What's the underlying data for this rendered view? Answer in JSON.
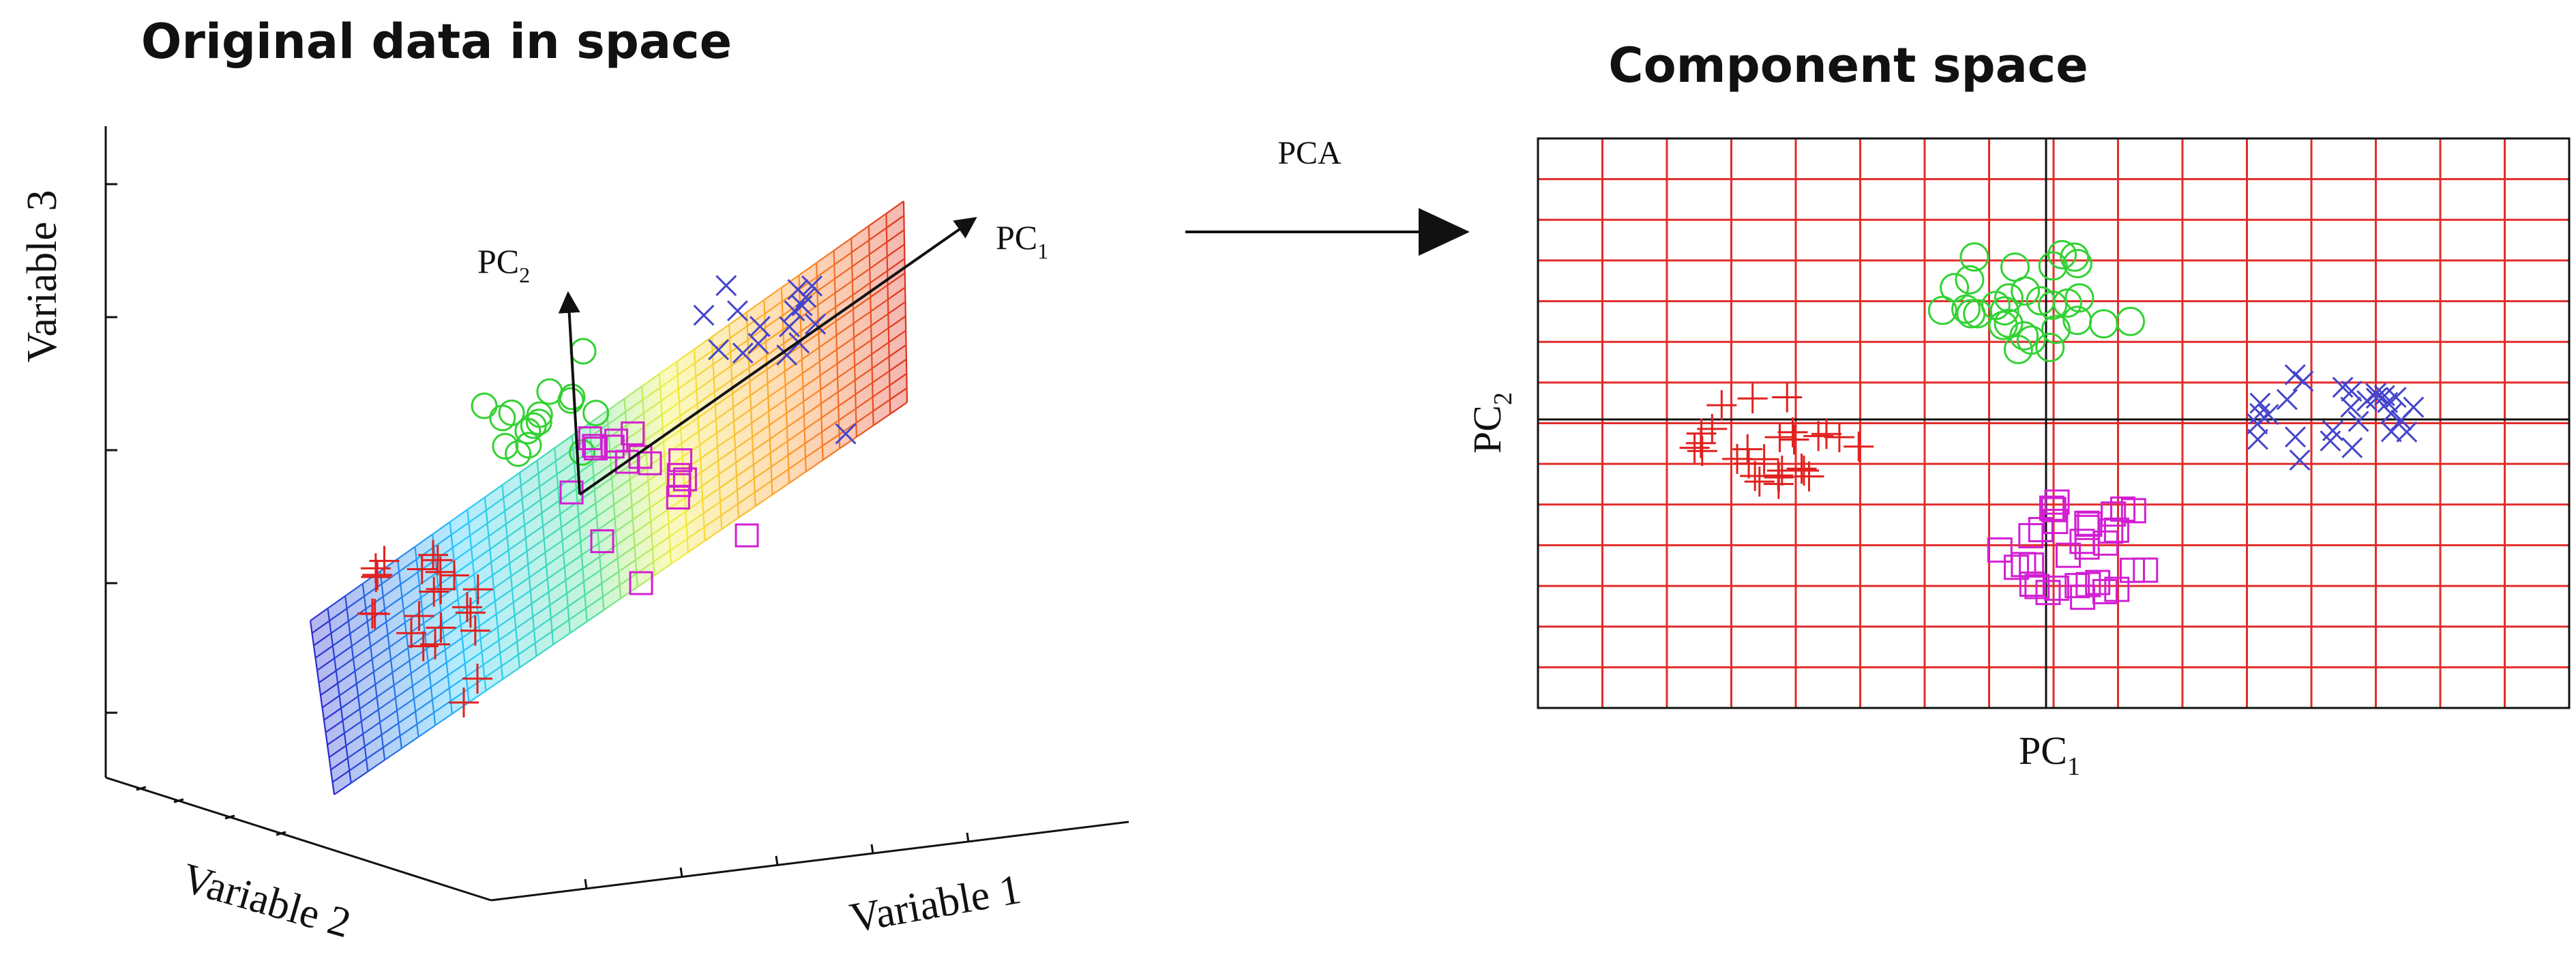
{
  "left_panel": {
    "title": "Original data in space",
    "axis_labels": {
      "x": "Variable 1",
      "y": "Variable 2",
      "z": "Variable 3"
    },
    "vectors": {
      "pc1": "PC",
      "pc1_sub": "1",
      "pc2": "PC",
      "pc2_sub": "2"
    }
  },
  "transform": {
    "label": "PCA",
    "arrow_icon": "right-arrow-icon"
  },
  "right_panel": {
    "title": "Component space",
    "axis_labels": {
      "x": "PC",
      "x_sub": "1",
      "y": "PC",
      "y_sub": "2"
    },
    "grid": {
      "enabled": true,
      "color": "#e32b2b"
    }
  },
  "colors": {
    "red_cluster": "#e0201e",
    "green_cluster": "#32d232",
    "blue_cluster": "#4444cc",
    "magenta_cluster": "#d21fd2",
    "axis": "#111111"
  },
  "markers": {
    "red": "plus",
    "green": "circle",
    "blue": "x",
    "magenta": "square"
  }
}
